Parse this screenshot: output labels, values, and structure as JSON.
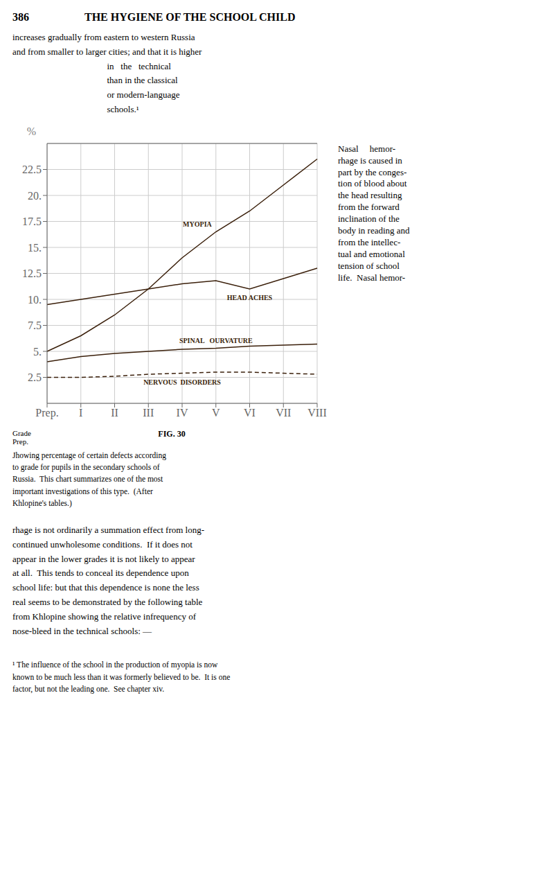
{
  "chart_data": {
    "type": "line",
    "title": "FIG. 30",
    "subtitle": "Jhowing percentage of certain defects according\nto grade for pupils in the secondary schools of\nRussia.  This chart summarizes one of the most\nimportant investigations of this type.  (After\nKhlopine's tables.)",
    "xlabel": "Grade",
    "ylabel": "%",
    "categories": [
      "Prep.",
      "I",
      "II",
      "III",
      "IV",
      "V",
      "VI",
      "VII",
      "VIII"
    ],
    "series": [
      {
        "name": "MYOPIA",
        "values": [
          5.0,
          6.5,
          8.5,
          11.0,
          14.0,
          16.5,
          18.5,
          21.0,
          23.5
        ],
        "line_style": "solid"
      },
      {
        "name": "HEAD ACHES",
        "values": [
          9.5,
          10.0,
          10.5,
          11.0,
          11.5,
          11.8,
          11.0,
          12.0,
          13.0
        ],
        "line_style": "solid"
      },
      {
        "name": "SPINAL   OURVATURE",
        "values": [
          4.0,
          4.5,
          4.8,
          5.0,
          5.2,
          5.3,
          5.5,
          5.6,
          5.7
        ],
        "line_style": "solid"
      },
      {
        "name": "NERVOUS  DISORDERS",
        "values": [
          2.5,
          2.5,
          2.6,
          2.8,
          2.9,
          3.0,
          3.0,
          2.9,
          2.8
        ],
        "line_style": "dashed"
      }
    ],
    "color": "#3a1f0a",
    "ylim": [
      0,
      25
    ],
    "yticks": [
      2.5,
      {
        "value": 5.0,
        "label": "5."
      },
      7.5,
      {
        "value": 10.0,
        "label": "10."
      },
      12.5,
      {
        "value": 15.0,
        "label": "15."
      },
      17.5,
      {
        "value": 20.0,
        "label": "20."
      },
      22.5
    ],
    "grid": true,
    "annotations": [
      "386",
      "THE HYGIENE OF THE SCHOOL CHILD",
      "increases gradually from eastern to western Russia\nand from smaller to larger cities; and that it is higher\n                                          in   the   technical\n                                          than in the classical\n                                          or modern-language\n                                          schools.¹",
      "Nasal     hemor-\nrhage is caused in\npart by the conges-\ntion of blood about\nthe head resulting\nfrom the forward\ninclination of the\nbody in reading and\nfrom the intellec-\ntual and emotional\ntension of school\nlife.  Nasal hemor-",
      "Prep.",
      "rhage is not ordinarily a summation effect from long-\ncontinued unwholesome conditions.  If it does not\nappear in the lower grades it is not likely to appear\nat all.  This tends to conceal its dependence upon\nschool life: but that this dependence is none the less\nreal seems to be demonstrated by the following table\nfrom Khlopine showing the relative infrequency of\nnose-bleed in the technical schools: —",
      "¹ The influence of the school in the production of myopia is now\nknown to be much less than it was formerly believed to be.  It is one\nfactor, but not the leading one.  See chapter xiv."
    ]
  }
}
